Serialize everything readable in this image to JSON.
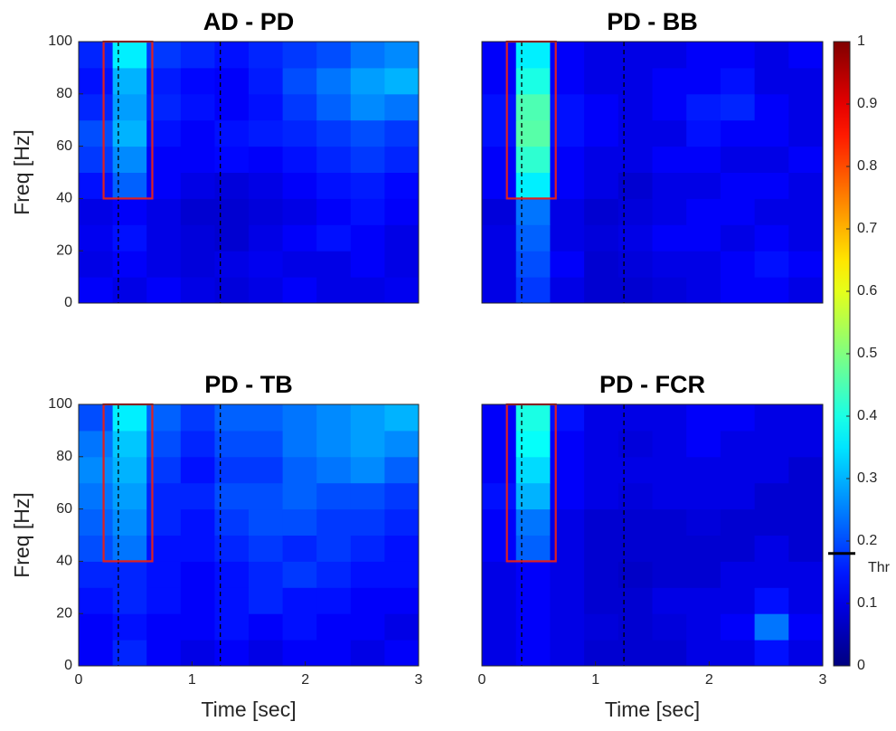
{
  "chart_data": [
    {
      "type": "heatmap",
      "title": "AD - PD",
      "ylabel": "Freq [Hz]",
      "xlim": [
        0,
        3
      ],
      "ylim": [
        0,
        100
      ],
      "yticks": [
        0,
        20,
        40,
        60,
        80,
        100
      ],
      "x": [
        0.15,
        0.45,
        0.75,
        1.05,
        1.35,
        1.65,
        1.95,
        2.25,
        2.55,
        2.85
      ],
      "y": [
        5,
        15,
        25,
        35,
        45,
        55,
        65,
        75,
        85,
        95
      ],
      "z": [
        [
          0.12,
          0.1,
          0.12,
          0.1,
          0.09,
          0.1,
          0.12,
          0.1,
          0.1,
          0.11
        ],
        [
          0.1,
          0.12,
          0.1,
          0.09,
          0.1,
          0.11,
          0.1,
          0.1,
          0.12,
          0.1
        ],
        [
          0.11,
          0.14,
          0.1,
          0.09,
          0.08,
          0.1,
          0.12,
          0.14,
          0.12,
          0.1
        ],
        [
          0.1,
          0.12,
          0.1,
          0.08,
          0.08,
          0.09,
          0.1,
          0.12,
          0.14,
          0.12
        ],
        [
          0.14,
          0.22,
          0.12,
          0.1,
          0.09,
          0.1,
          0.12,
          0.14,
          0.15,
          0.13
        ],
        [
          0.18,
          0.26,
          0.12,
          0.12,
          0.13,
          0.12,
          0.14,
          0.16,
          0.18,
          0.16
        ],
        [
          0.2,
          0.3,
          0.14,
          0.12,
          0.14,
          0.15,
          0.16,
          0.18,
          0.2,
          0.18
        ],
        [
          0.16,
          0.28,
          0.16,
          0.14,
          0.12,
          0.14,
          0.18,
          0.22,
          0.26,
          0.24
        ],
        [
          0.14,
          0.3,
          0.15,
          0.13,
          0.12,
          0.15,
          0.2,
          0.24,
          0.28,
          0.3
        ],
        [
          0.16,
          0.36,
          0.18,
          0.16,
          0.14,
          0.16,
          0.18,
          0.2,
          0.24,
          0.26
        ]
      ],
      "vlines": [
        0.35,
        1.25
      ],
      "roi": {
        "x": [
          0.22,
          0.65
        ],
        "y": [
          40,
          100
        ],
        "color": "#e02020"
      }
    },
    {
      "type": "heatmap",
      "title": "PD - BB",
      "xlim": [
        0,
        3
      ],
      "ylim": [
        0,
        100
      ],
      "x": [
        0.15,
        0.45,
        0.75,
        1.05,
        1.35,
        1.65,
        1.95,
        2.25,
        2.55,
        2.85
      ],
      "y": [
        5,
        15,
        25,
        35,
        45,
        55,
        65,
        75,
        85,
        95
      ],
      "z": [
        [
          0.1,
          0.18,
          0.1,
          0.08,
          0.08,
          0.09,
          0.1,
          0.12,
          0.12,
          0.1
        ],
        [
          0.1,
          0.2,
          0.12,
          0.08,
          0.09,
          0.1,
          0.1,
          0.12,
          0.14,
          0.12
        ],
        [
          0.1,
          0.22,
          0.1,
          0.09,
          0.1,
          0.12,
          0.12,
          0.1,
          0.12,
          0.1
        ],
        [
          0.09,
          0.24,
          0.1,
          0.08,
          0.09,
          0.1,
          0.12,
          0.12,
          0.1,
          0.1
        ],
        [
          0.12,
          0.36,
          0.12,
          0.1,
          0.08,
          0.1,
          0.1,
          0.12,
          0.12,
          0.1
        ],
        [
          0.12,
          0.42,
          0.12,
          0.1,
          0.1,
          0.12,
          0.12,
          0.1,
          0.1,
          0.12
        ],
        [
          0.14,
          0.46,
          0.14,
          0.12,
          0.1,
          0.1,
          0.14,
          0.12,
          0.12,
          0.1
        ],
        [
          0.14,
          0.45,
          0.14,
          0.12,
          0.1,
          0.12,
          0.15,
          0.16,
          0.12,
          0.1
        ],
        [
          0.12,
          0.4,
          0.12,
          0.1,
          0.1,
          0.12,
          0.12,
          0.14,
          0.1,
          0.1
        ],
        [
          0.12,
          0.36,
          0.12,
          0.1,
          0.1,
          0.1,
          0.12,
          0.12,
          0.1,
          0.12
        ]
      ],
      "vlines": [
        0.35,
        1.25
      ],
      "roi": {
        "x": [
          0.22,
          0.65
        ],
        "y": [
          40,
          100
        ],
        "color": "#e02020"
      }
    },
    {
      "type": "heatmap",
      "title": "PD - TB",
      "xlabel": "Time [sec]",
      "ylabel": "Freq [Hz]",
      "xlim": [
        0,
        3
      ],
      "ylim": [
        0,
        100
      ],
      "xticks": [
        0,
        1,
        2,
        3
      ],
      "yticks": [
        0,
        20,
        40,
        60,
        80,
        100
      ],
      "x": [
        0.15,
        0.45,
        0.75,
        1.05,
        1.35,
        1.65,
        1.95,
        2.25,
        2.55,
        2.85
      ],
      "y": [
        5,
        15,
        25,
        35,
        45,
        55,
        65,
        75,
        85,
        95
      ],
      "z": [
        [
          0.12,
          0.16,
          0.12,
          0.1,
          0.12,
          0.1,
          0.12,
          0.12,
          0.1,
          0.12
        ],
        [
          0.12,
          0.14,
          0.12,
          0.12,
          0.14,
          0.12,
          0.14,
          0.12,
          0.12,
          0.1
        ],
        [
          0.14,
          0.16,
          0.14,
          0.12,
          0.14,
          0.16,
          0.14,
          0.14,
          0.12,
          0.12
        ],
        [
          0.16,
          0.16,
          0.14,
          0.12,
          0.14,
          0.16,
          0.18,
          0.16,
          0.14,
          0.14
        ],
        [
          0.2,
          0.24,
          0.14,
          0.14,
          0.16,
          0.18,
          0.16,
          0.18,
          0.16,
          0.14
        ],
        [
          0.22,
          0.26,
          0.16,
          0.14,
          0.18,
          0.2,
          0.2,
          0.18,
          0.18,
          0.16
        ],
        [
          0.24,
          0.28,
          0.16,
          0.16,
          0.2,
          0.2,
          0.22,
          0.2,
          0.2,
          0.18
        ],
        [
          0.26,
          0.3,
          0.18,
          0.14,
          0.18,
          0.18,
          0.22,
          0.24,
          0.26,
          0.22
        ],
        [
          0.24,
          0.32,
          0.2,
          0.16,
          0.2,
          0.2,
          0.24,
          0.26,
          0.28,
          0.26
        ],
        [
          0.2,
          0.36,
          0.22,
          0.18,
          0.22,
          0.22,
          0.24,
          0.26,
          0.28,
          0.3
        ]
      ],
      "vlines": [
        0.35,
        1.25
      ],
      "roi": {
        "x": [
          0.22,
          0.65
        ],
        "y": [
          40,
          100
        ],
        "color": "#e02020"
      }
    },
    {
      "type": "heatmap",
      "title": "PD - FCR",
      "xlabel": "Time [sec]",
      "xlim": [
        0,
        3
      ],
      "ylim": [
        0,
        100
      ],
      "xticks": [
        0,
        1,
        2,
        3
      ],
      "x": [
        0.15,
        0.45,
        0.75,
        1.05,
        1.35,
        1.65,
        1.95,
        2.25,
        2.55,
        2.85
      ],
      "y": [
        5,
        15,
        25,
        35,
        45,
        55,
        65,
        75,
        85,
        95
      ],
      "z": [
        [
          0.1,
          0.12,
          0.1,
          0.08,
          0.08,
          0.08,
          0.1,
          0.1,
          0.14,
          0.1
        ],
        [
          0.1,
          0.12,
          0.1,
          0.09,
          0.08,
          0.09,
          0.1,
          0.12,
          0.24,
          0.12
        ],
        [
          0.1,
          0.12,
          0.1,
          0.08,
          0.08,
          0.1,
          0.1,
          0.1,
          0.14,
          0.1
        ],
        [
          0.1,
          0.12,
          0.1,
          0.08,
          0.07,
          0.08,
          0.08,
          0.1,
          0.1,
          0.1
        ],
        [
          0.12,
          0.22,
          0.1,
          0.08,
          0.08,
          0.08,
          0.08,
          0.08,
          0.1,
          0.08
        ],
        [
          0.12,
          0.24,
          0.1,
          0.08,
          0.08,
          0.08,
          0.09,
          0.08,
          0.08,
          0.08
        ],
        [
          0.14,
          0.3,
          0.12,
          0.1,
          0.09,
          0.1,
          0.1,
          0.1,
          0.08,
          0.08
        ],
        [
          0.12,
          0.34,
          0.12,
          0.1,
          0.1,
          0.1,
          0.1,
          0.1,
          0.1,
          0.08
        ],
        [
          0.12,
          0.38,
          0.12,
          0.1,
          0.09,
          0.1,
          0.12,
          0.1,
          0.1,
          0.1
        ],
        [
          0.12,
          0.4,
          0.14,
          0.1,
          0.1,
          0.1,
          0.12,
          0.12,
          0.1,
          0.1
        ]
      ],
      "vlines": [
        0.35,
        1.25
      ],
      "roi": {
        "x": [
          0.22,
          0.65
        ],
        "y": [
          40,
          100
        ],
        "color": "#e02020"
      }
    },
    {
      "type": "colorbar",
      "colormap": "jet",
      "clim": [
        0,
        1
      ],
      "ticks": [
        0,
        0.1,
        0.2,
        0.3,
        0.4,
        0.5,
        0.6,
        0.7,
        0.8,
        0.9,
        1
      ],
      "threshold": {
        "value": 0.18,
        "label": "Thr"
      }
    }
  ]
}
